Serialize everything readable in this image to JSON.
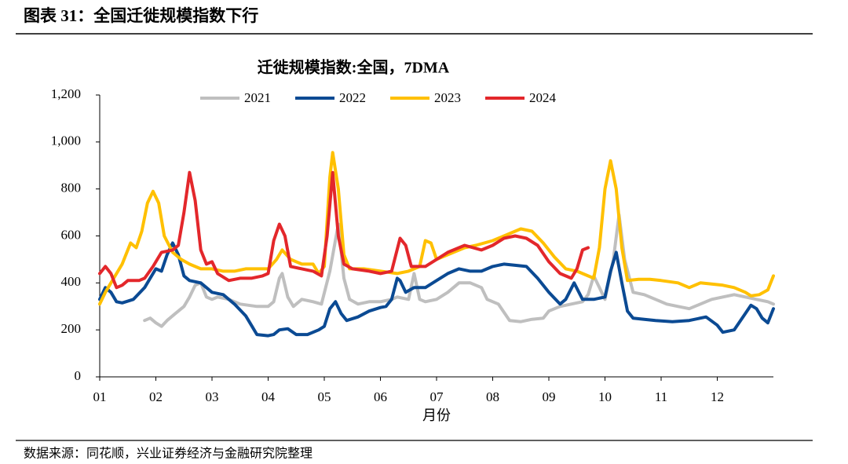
{
  "header": {
    "title": "图表 31：全国迁徙规模指数下行"
  },
  "footer": {
    "source": "数据来源：同花顺，兴业证券经济与金融研究院整理"
  },
  "chart_data": {
    "type": "line",
    "title": "迁徙规模指数:全国，7DMA",
    "x_label": "月份",
    "xlim": [
      1,
      13
    ],
    "xticks": [
      {
        "value": 1,
        "label": "01"
      },
      {
        "value": 2,
        "label": "02"
      },
      {
        "value": 3,
        "label": "03"
      },
      {
        "value": 4,
        "label": "04"
      },
      {
        "value": 5,
        "label": "05"
      },
      {
        "value": 6,
        "label": "06"
      },
      {
        "value": 7,
        "label": "07"
      },
      {
        "value": 8,
        "label": "08"
      },
      {
        "value": 9,
        "label": "09"
      },
      {
        "value": 10,
        "label": "10"
      },
      {
        "value": 11,
        "label": "11"
      },
      {
        "value": 12,
        "label": "12"
      }
    ],
    "ylim": [
      0,
      1200
    ],
    "yticks": [
      0,
      200,
      400,
      600,
      800,
      {
        "value": 1000,
        "label": "1,000"
      },
      {
        "value": 1200,
        "label": "1,200"
      }
    ],
    "legend": "top",
    "grid": false,
    "series": [
      {
        "name": "2021",
        "color": "#bfbfbf",
        "x": [
          1.8,
          1.9,
          2.0,
          2.1,
          2.2,
          2.35,
          2.5,
          2.6,
          2.7,
          2.8,
          2.9,
          3.0,
          3.1,
          3.3,
          3.5,
          3.8,
          4.0,
          4.1,
          4.2,
          4.25,
          4.35,
          4.45,
          4.6,
          4.8,
          4.95,
          5.1,
          5.25,
          5.35,
          5.45,
          5.6,
          5.8,
          6.0,
          6.2,
          6.3,
          6.5,
          6.6,
          6.7,
          6.8,
          7.0,
          7.2,
          7.4,
          7.6,
          7.8,
          7.9,
          8.1,
          8.3,
          8.5,
          8.7,
          8.9,
          9.0,
          9.2,
          9.4,
          9.6,
          9.7,
          9.8,
          9.9,
          10.0,
          10.15,
          10.25,
          10.35,
          10.5,
          10.7,
          10.9,
          11.1,
          11.3,
          11.5,
          11.7,
          11.9,
          12.1,
          12.3,
          12.5,
          12.7,
          12.9,
          13.0
        ],
        "values": [
          240,
          250,
          230,
          215,
          240,
          270,
          300,
          340,
          390,
          400,
          340,
          330,
          340,
          330,
          310,
          300,
          300,
          320,
          420,
          440,
          340,
          300,
          330,
          320,
          310,
          450,
          650,
          420,
          330,
          310,
          320,
          320,
          330,
          340,
          330,
          440,
          330,
          320,
          330,
          360,
          400,
          400,
          380,
          330,
          310,
          240,
          235,
          245,
          250,
          280,
          300,
          310,
          320,
          350,
          430,
          380,
          330,
          500,
          690,
          500,
          360,
          350,
          330,
          310,
          300,
          290,
          310,
          330,
          340,
          350,
          340,
          330,
          320,
          310
        ]
      },
      {
        "name": "2022",
        "color": "#0b4a93",
        "x": [
          1.0,
          1.1,
          1.2,
          1.3,
          1.4,
          1.6,
          1.8,
          1.9,
          2.0,
          2.1,
          2.2,
          2.3,
          2.4,
          2.5,
          2.6,
          2.8,
          2.9,
          3.0,
          3.2,
          3.4,
          3.6,
          3.7,
          3.8,
          4.0,
          4.1,
          4.2,
          4.35,
          4.5,
          4.7,
          4.9,
          5.0,
          5.1,
          5.2,
          5.3,
          5.4,
          5.6,
          5.8,
          6.0,
          6.1,
          6.2,
          6.3,
          6.35,
          6.45,
          6.6,
          6.8,
          7.0,
          7.2,
          7.4,
          7.6,
          7.8,
          8.0,
          8.2,
          8.4,
          8.6,
          8.8,
          9.0,
          9.2,
          9.3,
          9.45,
          9.6,
          9.8,
          10.0,
          10.1,
          10.2,
          10.3,
          10.4,
          10.5,
          10.7,
          10.9,
          11.2,
          11.5,
          11.8,
          12.0,
          12.1,
          12.3,
          12.5,
          12.6,
          12.7,
          12.8,
          12.9,
          13.0
        ],
        "values": [
          330,
          380,
          360,
          320,
          315,
          330,
          380,
          420,
          460,
          450,
          520,
          570,
          520,
          430,
          410,
          400,
          380,
          360,
          350,
          310,
          260,
          220,
          180,
          175,
          180,
          200,
          205,
          180,
          180,
          200,
          215,
          290,
          320,
          270,
          240,
          255,
          280,
          295,
          300,
          330,
          420,
          410,
          360,
          380,
          380,
          410,
          440,
          460,
          450,
          450,
          470,
          480,
          475,
          470,
          420,
          360,
          310,
          330,
          400,
          330,
          330,
          340,
          450,
          530,
          400,
          280,
          250,
          245,
          240,
          235,
          240,
          255,
          220,
          190,
          200,
          270,
          305,
          290,
          250,
          230,
          290
        ]
      },
      {
        "name": "2023",
        "color": "#ffc000",
        "x": [
          1.0,
          1.1,
          1.2,
          1.4,
          1.55,
          1.65,
          1.75,
          1.85,
          1.95,
          2.05,
          2.15,
          2.3,
          2.45,
          2.6,
          2.8,
          3.0,
          3.2,
          3.4,
          3.6,
          3.8,
          4.0,
          4.15,
          4.25,
          4.4,
          4.6,
          4.8,
          4.9,
          5.0,
          5.1,
          5.15,
          5.25,
          5.35,
          5.45,
          5.7,
          6.0,
          6.3,
          6.5,
          6.6,
          6.7,
          6.8,
          6.9,
          7.0,
          7.2,
          7.5,
          7.7,
          8.0,
          8.3,
          8.5,
          8.7,
          8.9,
          9.1,
          9.3,
          9.5,
          9.7,
          9.8,
          9.9,
          10.0,
          10.1,
          10.2,
          10.3,
          10.4,
          10.6,
          10.8,
          11.0,
          11.3,
          11.5,
          11.7,
          11.9,
          12.1,
          12.3,
          12.5,
          12.6,
          12.75,
          12.9,
          13.0
        ],
        "values": [
          310,
          360,
          400,
          480,
          570,
          550,
          620,
          740,
          790,
          740,
          600,
          530,
          500,
          480,
          460,
          460,
          450,
          450,
          460,
          460,
          460,
          500,
          540,
          500,
          480,
          480,
          440,
          470,
          850,
          955,
          800,
          520,
          460,
          460,
          450,
          440,
          450,
          460,
          470,
          580,
          570,
          500,
          520,
          550,
          560,
          580,
          610,
          630,
          620,
          570,
          510,
          460,
          450,
          430,
          420,
          550,
          800,
          920,
          800,
          550,
          410,
          415,
          415,
          410,
          400,
          380,
          400,
          395,
          390,
          380,
          360,
          345,
          350,
          370,
          430
        ]
      },
      {
        "name": "2024",
        "color": "#e3272b",
        "x": [
          1.0,
          1.1,
          1.2,
          1.3,
          1.4,
          1.5,
          1.7,
          1.8,
          1.95,
          2.1,
          2.3,
          2.4,
          2.5,
          2.6,
          2.7,
          2.8,
          2.9,
          3.0,
          3.1,
          3.3,
          3.5,
          3.7,
          3.9,
          4.0,
          4.1,
          4.2,
          4.3,
          4.4,
          4.6,
          4.8,
          4.95,
          5.05,
          5.15,
          5.25,
          5.35,
          5.5,
          5.8,
          6.0,
          6.2,
          6.35,
          6.45,
          6.55,
          6.8,
          7.0,
          7.2,
          7.5,
          7.8,
          8.0,
          8.2,
          8.4,
          8.6,
          8.8,
          9.0,
          9.2,
          9.4,
          9.5,
          9.6,
          9.7
        ],
        "values": [
          440,
          470,
          440,
          380,
          390,
          410,
          410,
          420,
          470,
          530,
          540,
          560,
          700,
          870,
          750,
          540,
          480,
          490,
          440,
          410,
          420,
          420,
          430,
          440,
          580,
          650,
          600,
          470,
          460,
          450,
          430,
          600,
          870,
          600,
          480,
          460,
          450,
          440,
          450,
          590,
          560,
          470,
          470,
          500,
          530,
          560,
          540,
          560,
          590,
          600,
          590,
          560,
          490,
          440,
          420,
          460,
          540,
          550
        ]
      }
    ]
  }
}
